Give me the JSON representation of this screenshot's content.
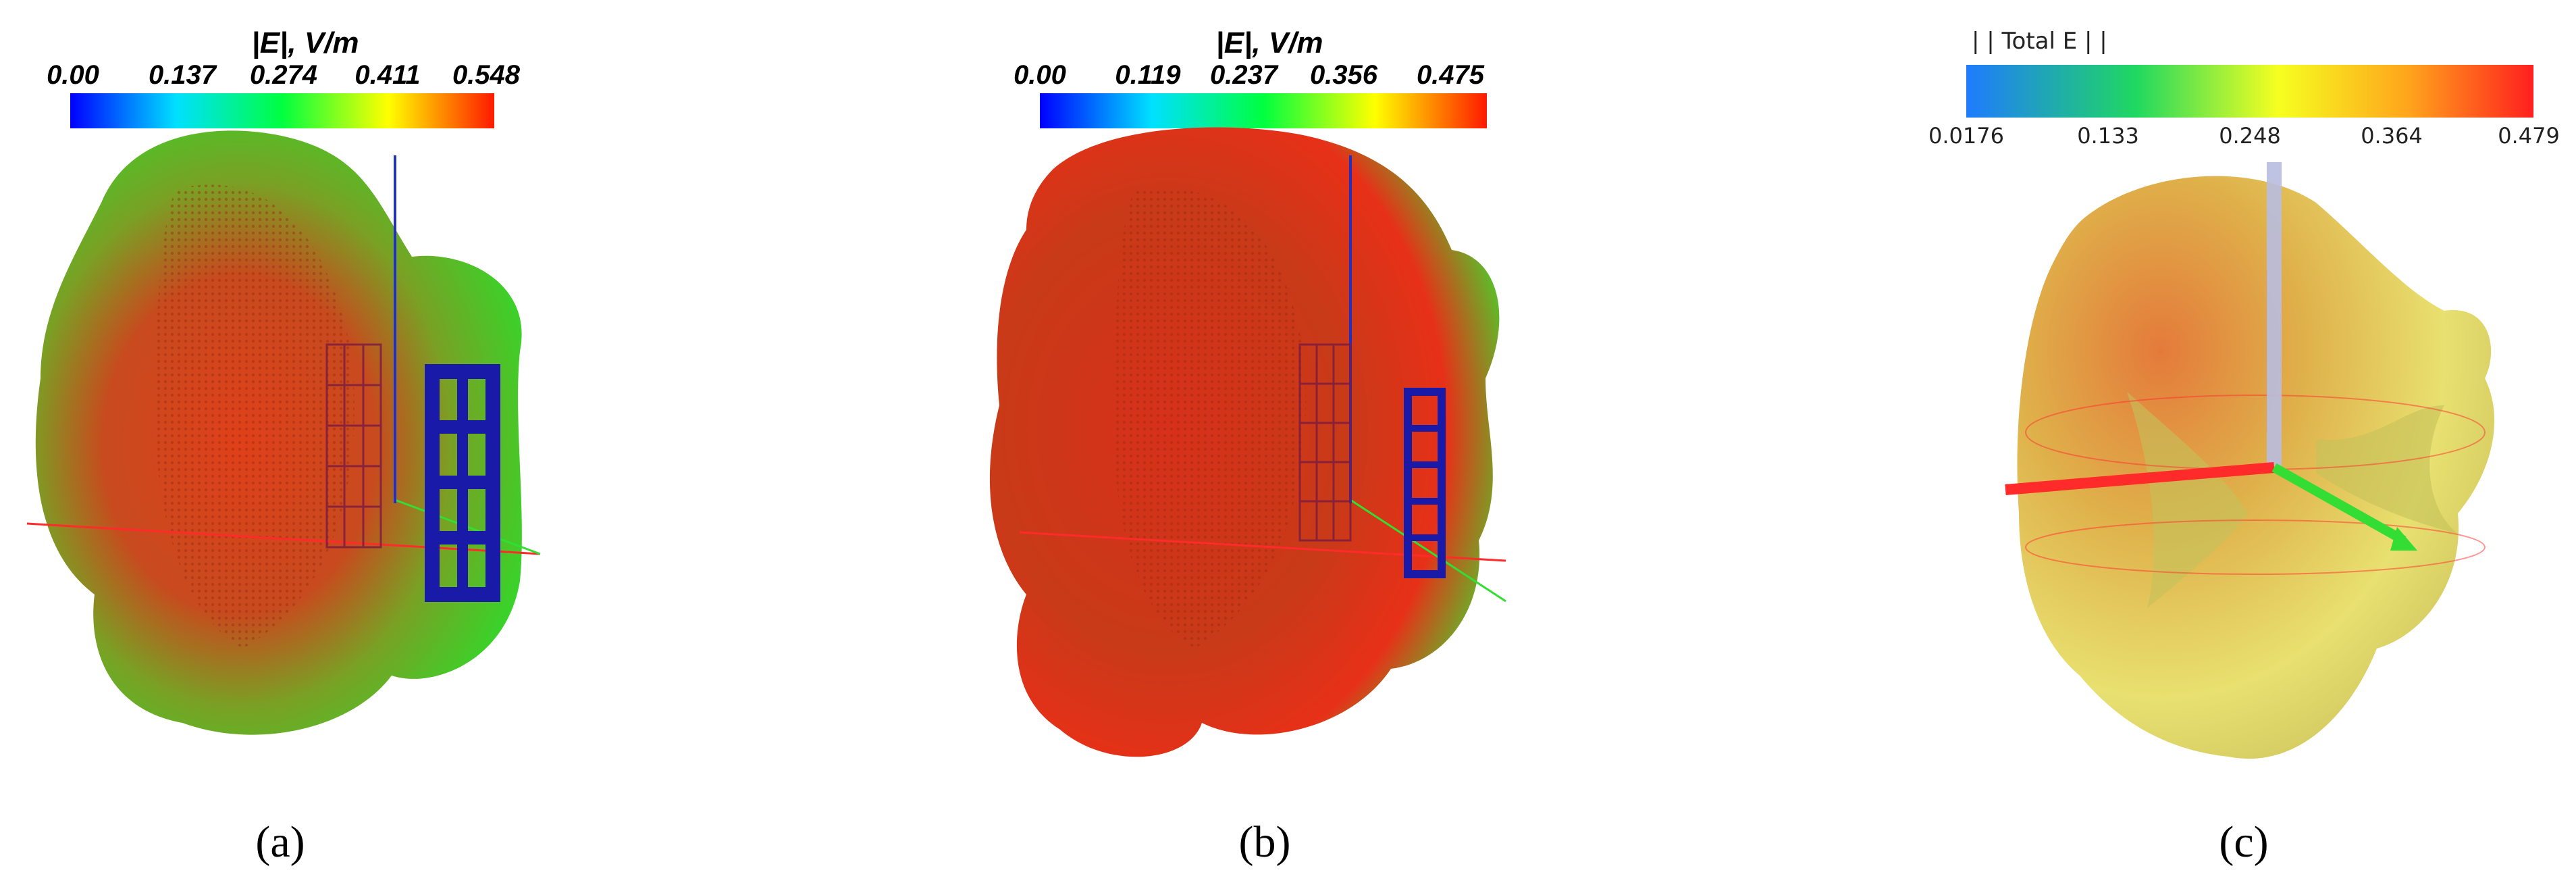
{
  "panels": [
    {
      "id": "a",
      "label": "(a)",
      "colorbar": {
        "title": "|E|, V/m",
        "ticks": [
          "0.00",
          "0.137",
          "0.274",
          "0.411",
          "0.548"
        ],
        "min": 0.0,
        "max": 0.548,
        "colors": [
          "#0000ff",
          "#00e0ff",
          "#00ff40",
          "#ffff00",
          "#ff2000"
        ]
      }
    },
    {
      "id": "b",
      "label": "(b)",
      "colorbar": {
        "title": "|E|, V/m",
        "ticks": [
          "0.00",
          "0.119",
          "0.237",
          "0.356",
          "0.475"
        ],
        "min": 0.0,
        "max": 0.475,
        "colors": [
          "#0000ff",
          "#00e0ff",
          "#00ff40",
          "#ffff00",
          "#ff2000"
        ]
      }
    },
    {
      "id": "c",
      "label": "(c)",
      "colorbar": {
        "title": "| | Total E | |",
        "ticks": [
          "0.0176",
          "0.133",
          "0.248",
          "0.364",
          "0.479"
        ],
        "min": 0.0176,
        "max": 0.479,
        "colors": [
          "#2080ff",
          "#20d060",
          "#ffff20",
          "#ffa020",
          "#ff2020"
        ]
      }
    }
  ],
  "colors": {
    "antenna_blue": "#1a1aa8",
    "axis_red": "#ff2a2a",
    "axis_green": "#33dd33",
    "axis_blue": "#2030c0"
  }
}
